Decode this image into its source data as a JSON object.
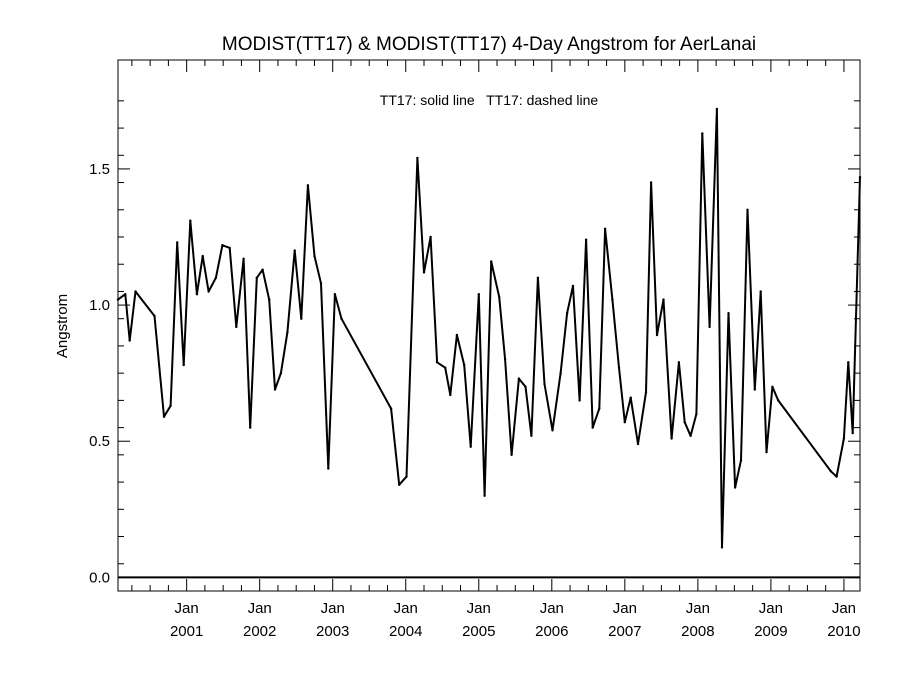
{
  "chart_data": {
    "type": "line",
    "title": "MODIST(TT17) & MODIST(TT17) 4-Day Angstrom for AerLanai",
    "annotation": "TT17: solid line   TT17: dashed line",
    "xlabel": "",
    "ylabel": "Angstrom",
    "xlim": [
      2000.06,
      2010.22
    ],
    "ylim": [
      -0.05,
      1.9
    ],
    "y_ticks": [
      0.0,
      0.5,
      1.0,
      1.5
    ],
    "y_tick_labels": [
      "0.0",
      "0.5",
      "1.0",
      "1.5"
    ],
    "x_ticks": [
      2001,
      2002,
      2003,
      2004,
      2005,
      2006,
      2007,
      2008,
      2009,
      2010
    ],
    "x_tick_labels_top": [
      "Jan",
      "Jan",
      "Jan",
      "Jan",
      "Jan",
      "Jan",
      "Jan",
      "Jan",
      "Jan",
      "Jan"
    ],
    "x_tick_labels_bottom": [
      "2001",
      "2002",
      "2003",
      "2004",
      "2005",
      "2006",
      "2007",
      "2008",
      "2009",
      "2010"
    ],
    "grid": false,
    "zero_line": 0.0,
    "series": [
      {
        "name": "TT17",
        "style": "solid",
        "color": "#000000",
        "x": [
          2000.06,
          2000.16,
          2000.22,
          2000.3,
          2000.56,
          2000.69,
          2000.78,
          2000.87,
          2000.96,
          2001.05,
          2001.14,
          2001.22,
          2001.3,
          2001.4,
          2001.49,
          2001.59,
          2001.68,
          2001.78,
          2001.87,
          2001.96,
          2002.04,
          2002.13,
          2002.21,
          2002.29,
          2002.38,
          2002.48,
          2002.57,
          2002.66,
          2002.75,
          2002.84,
          2002.94,
          2003.03,
          2003.12,
          2003.8,
          2003.91,
          2004.01,
          2004.16,
          2004.25,
          2004.34,
          2004.43,
          2004.54,
          2004.61,
          2004.7,
          2004.8,
          2004.89,
          2005.0,
          2005.08,
          2005.17,
          2005.28,
          2005.36,
          2005.45,
          2005.55,
          2005.64,
          2005.72,
          2005.81,
          2005.9,
          2006.01,
          2006.12,
          2006.21,
          2006.29,
          2006.38,
          2006.47,
          2006.56,
          2006.65,
          2006.73,
          2006.83,
          2006.92,
          2007.0,
          2007.08,
          2007.18,
          2007.29,
          2007.36,
          2007.44,
          2007.53,
          2007.64,
          2007.74,
          2007.82,
          2007.9,
          2007.98,
          2008.06,
          2008.16,
          2008.26,
          2008.33,
          2008.42,
          2008.51,
          2008.59,
          2008.68,
          2008.78,
          2008.86,
          2008.94,
          2009.02,
          2009.1,
          2009.82,
          2009.9,
          2010.0,
          2010.06,
          2010.12,
          2010.22
        ],
        "y": [
          1.02,
          1.04,
          0.87,
          1.05,
          0.96,
          0.59,
          0.63,
          1.23,
          0.78,
          1.31,
          1.04,
          1.18,
          1.05,
          1.1,
          1.22,
          1.21,
          0.92,
          1.17,
          0.55,
          1.1,
          1.13,
          1.02,
          0.69,
          0.75,
          0.9,
          1.2,
          0.95,
          1.44,
          1.18,
          1.08,
          0.4,
          1.04,
          0.95,
          0.62,
          0.34,
          0.37,
          1.54,
          1.12,
          1.25,
          0.79,
          0.77,
          0.67,
          0.89,
          0.78,
          0.48,
          1.04,
          0.3,
          1.16,
          1.03,
          0.8,
          0.45,
          0.73,
          0.7,
          0.52,
          1.1,
          0.71,
          0.54,
          0.75,
          0.97,
          1.07,
          0.65,
          1.24,
          0.55,
          0.62,
          1.28,
          1.02,
          0.77,
          0.57,
          0.66,
          0.49,
          0.68,
          1.45,
          0.89,
          1.02,
          0.51,
          0.79,
          0.57,
          0.52,
          0.6,
          1.63,
          0.92,
          1.72,
          0.11,
          0.97,
          0.33,
          0.43,
          1.35,
          0.69,
          1.05,
          0.46,
          0.7,
          0.65,
          0.39,
          0.37,
          0.51,
          0.79,
          0.53,
          1.47
        ]
      }
    ]
  }
}
